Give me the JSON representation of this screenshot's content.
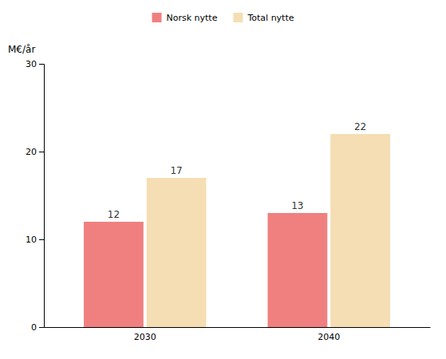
{
  "chart_data": {
    "type": "bar",
    "categories": [
      "2030",
      "2040"
    ],
    "series": [
      {
        "name": "Norsk nytte",
        "values": [
          12,
          13
        ],
        "color": "#F08080"
      },
      {
        "name": "Total nytte",
        "values": [
          17,
          22
        ],
        "color": "#F5DEB3"
      }
    ],
    "ylabel": "M€/år",
    "ylim": [
      0,
      30
    ],
    "yticks": [
      0,
      10,
      20,
      30
    ],
    "grid": false,
    "legend": "top",
    "data_labels": true
  }
}
